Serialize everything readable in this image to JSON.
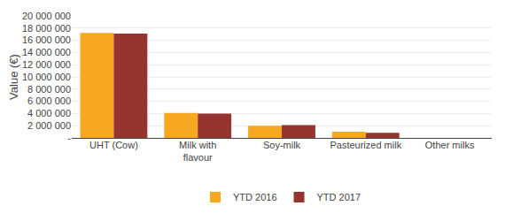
{
  "chart_data": {
    "type": "bar",
    "categories": [
      "UHT (Cow)",
      "Milk with\nflavour",
      "Soy-milk",
      "Pasteurized milk",
      "Other milks"
    ],
    "series": [
      {
        "name": "YTD 2016",
        "color": "#F5A820",
        "values": [
          17200000,
          4100000,
          2000000,
          1000000,
          0
        ]
      },
      {
        "name": "YTD 2017",
        "color": "#963530",
        "values": [
          17100000,
          4000000,
          2100000,
          850000,
          0
        ]
      }
    ],
    "ylabel": "Value (€)",
    "ylim": [
      0,
      20000000
    ],
    "yticks": [
      {
        "value": 0,
        "label": "-"
      },
      {
        "value": 2000000,
        "label": "2 000 000"
      },
      {
        "value": 4000000,
        "label": "4 000 000"
      },
      {
        "value": 6000000,
        "label": "6 000 000"
      },
      {
        "value": 8000000,
        "label": "8 000 000"
      },
      {
        "value": 10000000,
        "label": "10 000 000"
      },
      {
        "value": 12000000,
        "label": "12 000 000"
      },
      {
        "value": 14000000,
        "label": "14 000 000"
      },
      {
        "value": 16000000,
        "label": "16 000 000"
      },
      {
        "value": 18000000,
        "label": "18 000 000"
      },
      {
        "value": 20000000,
        "label": "20 000 000"
      }
    ],
    "grid": true,
    "legend": "bottom"
  }
}
